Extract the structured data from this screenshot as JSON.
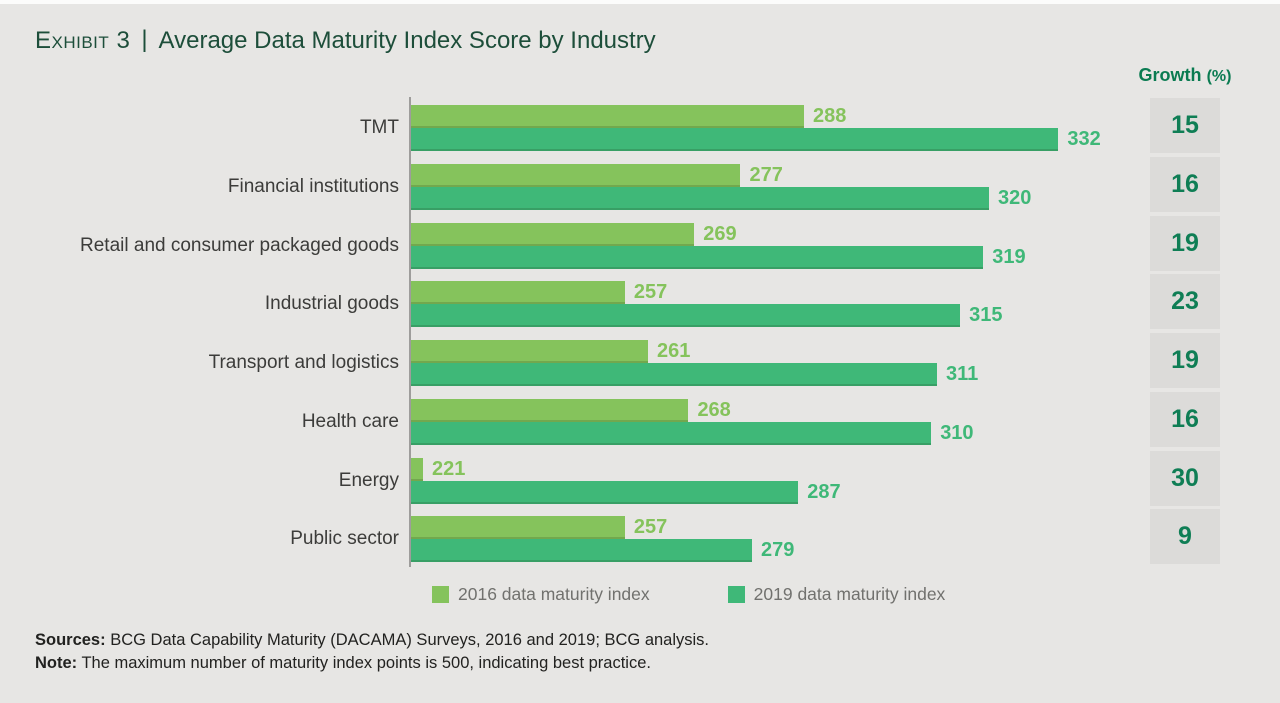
{
  "page": {
    "background": "#e7e6e4",
    "top_strip_color": "#fcfcfb"
  },
  "header": {
    "exhibit_label": "Exhibit 3",
    "separator": "|",
    "title": "Average Data Maturity Index Score by Industry",
    "title_color": "#1d4e3a"
  },
  "chart_data": {
    "type": "bar",
    "orientation": "horizontal",
    "title": "Average Data Maturity Index Score by Industry",
    "categories": [
      "TMT",
      "Financial institutions",
      "Retail and consumer packaged goods",
      "Industrial goods",
      "Transport and logistics",
      "Health care",
      "Energy",
      "Public sector"
    ],
    "series": [
      {
        "name": "2016 data maturity index",
        "color": "#85c35c",
        "values": [
          288,
          277,
          269,
          257,
          261,
          268,
          221,
          257
        ]
      },
      {
        "name": "2019 data maturity index",
        "color": "#3fb878",
        "values": [
          332,
          320,
          319,
          315,
          311,
          310,
          287,
          279
        ]
      }
    ],
    "growth_percent": {
      "header_main": "Growth",
      "header_unit": "(%)",
      "header_color": "#0a7b51",
      "value_color": "#0f7e55",
      "cell_background": "#dcdbd9",
      "values": [
        15,
        16,
        19,
        23,
        19,
        16,
        30,
        9
      ]
    },
    "value_labels": true,
    "grid": false,
    "legend_position": "bottom",
    "axis_baseline_value": 220,
    "xlim": [
      220,
      340
    ]
  },
  "footer": {
    "sources_label": "Sources:",
    "sources_text": " BCG Data Capability Maturity (DACAMA) Surveys, 2016 and 2019; BCG analysis.",
    "note_label": "Note:",
    "note_text": " The maximum number of maturity index points is 500, indicating best practice."
  }
}
